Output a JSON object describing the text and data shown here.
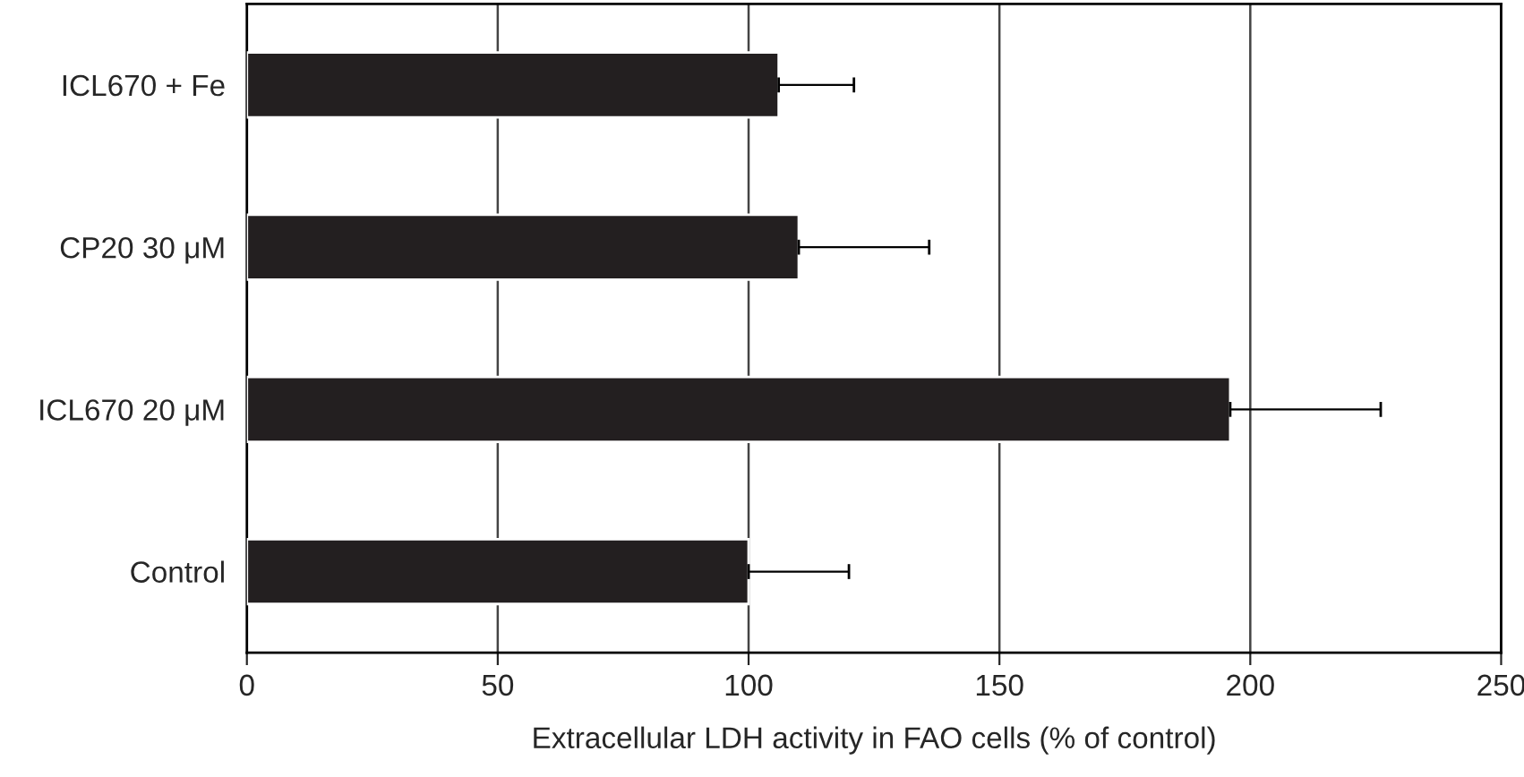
{
  "chart_data": {
    "type": "bar",
    "orientation": "horizontal",
    "xlabel": "Extracellular LDH activity in FAO cells (% of control)",
    "categories": [
      "ICL670 + Fe",
      "CP20 30 μM",
      "ICL670 20 μM",
      "Control"
    ],
    "values": [
      106,
      110,
      196,
      100
    ],
    "errors": [
      [
        106,
        121
      ],
      [
        110,
        136
      ],
      [
        196,
        226
      ],
      [
        100,
        120
      ]
    ],
    "color": "#231f20",
    "xlim": [
      0,
      250
    ],
    "xticks": [
      0,
      50,
      100,
      150,
      200,
      250
    ],
    "grid": "x"
  }
}
